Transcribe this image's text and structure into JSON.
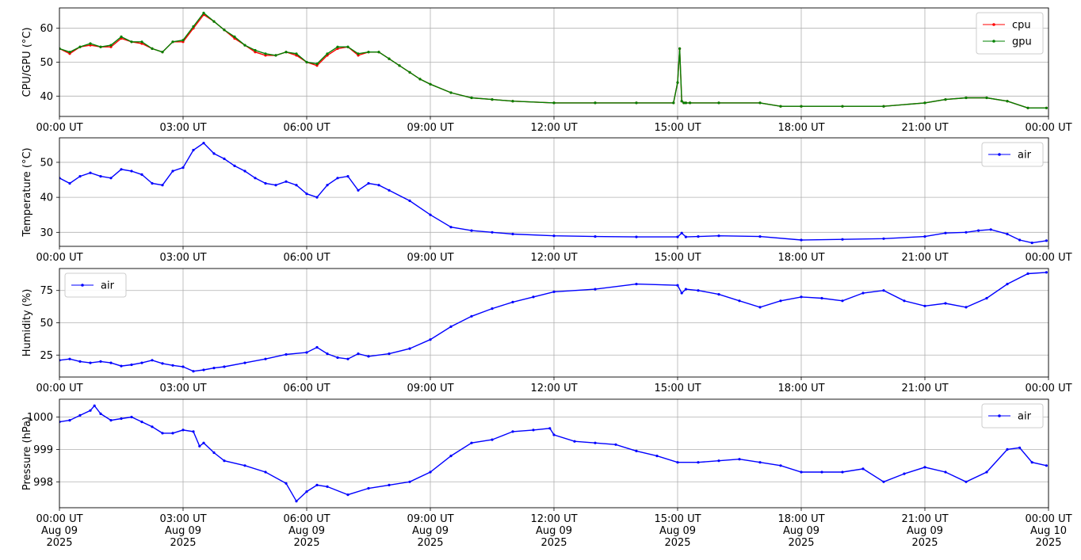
{
  "chart_data": [
    {
      "type": "line",
      "ylabel": "CPU/GPU (°C)",
      "ylim": [
        34,
        66
      ],
      "yticks": [
        40,
        50,
        60
      ],
      "legend": "top-right",
      "grid": true,
      "xtick_labels": [
        "00:00 UT",
        "03:00 UT",
        "06:00 UT",
        "09:00 UT",
        "12:00 UT",
        "15:00 UT",
        "18:00 UT",
        "21:00 UT",
        "00:00 UT"
      ],
      "series": [
        {
          "name": "cpu",
          "color": "#ff0000",
          "x": [
            0,
            0.25,
            0.5,
            0.75,
            1,
            1.25,
            1.5,
            1.75,
            2,
            2.25,
            2.5,
            2.75,
            3,
            3.25,
            3.5,
            3.75,
            4,
            4.25,
            4.5,
            4.75,
            5,
            5.25,
            5.5,
            5.75,
            6,
            6.25,
            6.5,
            6.75,
            7,
            7.25,
            7.5,
            7.75,
            8,
            8.25,
            8.5,
            8.75,
            9,
            9.5,
            10,
            10.5,
            11,
            12,
            13,
            14,
            14.9,
            15,
            15.05,
            15.1,
            15.15,
            15.2,
            15.3,
            16,
            17,
            17.5,
            18,
            19,
            20,
            21,
            21.5,
            22,
            22.5,
            23,
            23.5,
            23.95
          ],
          "y": [
            54,
            52.5,
            54.5,
            55,
            54.5,
            54.5,
            57,
            56,
            55.5,
            54,
            53,
            56,
            56,
            60,
            64,
            62,
            59.5,
            57,
            55,
            53,
            52,
            52,
            53,
            52,
            50,
            49,
            52,
            54,
            54.5,
            52,
            53,
            53,
            51,
            49,
            47,
            45,
            43.5,
            41,
            39.5,
            39,
            38.5,
            38,
            38,
            38,
            38,
            44,
            54,
            38.5,
            38,
            38,
            38,
            38,
            38,
            37,
            37,
            37,
            37,
            38,
            39,
            39.5,
            39.5,
            38.5,
            36.5,
            36.5
          ]
        },
        {
          "name": "gpu",
          "color": "#008000",
          "x": [
            0,
            0.25,
            0.5,
            0.75,
            1,
            1.25,
            1.5,
            1.75,
            2,
            2.25,
            2.5,
            2.75,
            3,
            3.25,
            3.5,
            3.75,
            4,
            4.25,
            4.5,
            4.75,
            5,
            5.25,
            5.5,
            5.75,
            6,
            6.25,
            6.5,
            6.75,
            7,
            7.25,
            7.5,
            7.75,
            8,
            8.25,
            8.5,
            8.75,
            9,
            9.5,
            10,
            10.5,
            11,
            12,
            13,
            14,
            14.9,
            15,
            15.05,
            15.1,
            15.15,
            15.2,
            15.3,
            16,
            17,
            17.5,
            18,
            19,
            20,
            21,
            21.5,
            22,
            22.5,
            23,
            23.5,
            23.95
          ],
          "y": [
            54,
            53,
            54.5,
            55.5,
            54.5,
            55,
            57.5,
            56,
            56,
            54,
            53,
            56,
            56.5,
            60.5,
            64.5,
            62,
            59.5,
            57.5,
            55,
            53.5,
            52.5,
            52,
            53,
            52.5,
            50,
            49.5,
            52.5,
            54.5,
            54.5,
            52.5,
            53,
            53,
            51,
            49,
            47,
            45,
            43.5,
            41,
            39.5,
            39,
            38.5,
            38,
            38,
            38,
            38,
            44,
            54,
            38.5,
            38,
            38,
            38,
            38,
            38,
            37,
            37,
            37,
            37,
            38,
            39,
            39.5,
            39.5,
            38.5,
            36.5,
            36.5
          ]
        }
      ]
    },
    {
      "type": "line",
      "ylabel": "Temperature (°C)",
      "ylim": [
        26,
        57
      ],
      "yticks": [
        30,
        40,
        50
      ],
      "legend": "top-right",
      "grid": true,
      "xtick_labels": [
        "00:00 UT",
        "03:00 UT",
        "06:00 UT",
        "09:00 UT",
        "12:00 UT",
        "15:00 UT",
        "18:00 UT",
        "21:00 UT",
        "00:00 UT"
      ],
      "series": [
        {
          "name": "air",
          "color": "#0000ff",
          "x": [
            0,
            0.25,
            0.5,
            0.75,
            1,
            1.25,
            1.5,
            1.75,
            2,
            2.25,
            2.5,
            2.75,
            3,
            3.25,
            3.5,
            3.75,
            4,
            4.25,
            4.5,
            4.75,
            5,
            5.25,
            5.5,
            5.75,
            6,
            6.25,
            6.5,
            6.75,
            7,
            7.25,
            7.5,
            7.75,
            8,
            8.5,
            9,
            9.5,
            10,
            10.5,
            11,
            12,
            13,
            14,
            15,
            15.1,
            15.2,
            15.5,
            16,
            17,
            18,
            19,
            20,
            21,
            21.5,
            22,
            22.3,
            22.6,
            23,
            23.3,
            23.6,
            23.95
          ],
          "y": [
            45.5,
            44,
            46,
            47,
            46,
            45.5,
            48,
            47.5,
            46.5,
            44,
            43.5,
            47.5,
            48.5,
            53.5,
            55.5,
            52.5,
            51,
            49,
            47.5,
            45.5,
            44,
            43.5,
            44.5,
            43.5,
            41,
            40,
            43.5,
            45.5,
            46,
            42,
            44,
            43.5,
            42,
            39,
            35,
            31.5,
            30.5,
            30,
            29.5,
            29,
            28.8,
            28.7,
            28.7,
            29.8,
            28.7,
            28.8,
            29,
            28.8,
            27.8,
            28,
            28.2,
            28.8,
            29.8,
            30,
            30.5,
            30.8,
            29.5,
            27.8,
            27,
            27.6
          ]
        }
      ]
    },
    {
      "type": "line",
      "ylabel": "Humidity (%)",
      "ylim": [
        8,
        92
      ],
      "yticks": [
        25,
        50,
        75
      ],
      "legend": "top-left",
      "grid": true,
      "xtick_labels": [
        "00:00 UT",
        "03:00 UT",
        "06:00 UT",
        "09:00 UT",
        "12:00 UT",
        "15:00 UT",
        "18:00 UT",
        "21:00 UT",
        "00:00 UT"
      ],
      "series": [
        {
          "name": "air",
          "color": "#0000ff",
          "x": [
            0,
            0.25,
            0.5,
            0.75,
            1,
            1.25,
            1.5,
            1.75,
            2,
            2.25,
            2.5,
            2.75,
            3,
            3.25,
            3.5,
            3.75,
            4,
            4.5,
            5,
            5.5,
            6,
            6.25,
            6.5,
            6.75,
            7,
            7.25,
            7.5,
            8,
            8.5,
            9,
            9.5,
            10,
            10.5,
            11,
            11.5,
            12,
            13,
            14,
            15,
            15.1,
            15.2,
            15.5,
            16,
            16.5,
            17,
            17.5,
            18,
            18.5,
            19,
            19.5,
            20,
            20.5,
            21,
            21.5,
            22,
            22.5,
            23,
            23.5,
            23.95
          ],
          "y": [
            21,
            22,
            20,
            19,
            20,
            19,
            16.5,
            17.5,
            19,
            21,
            18.5,
            17,
            16,
            12.5,
            13.5,
            15,
            16,
            19,
            22,
            25.5,
            27,
            31,
            26,
            23,
            22,
            26,
            24,
            26,
            30,
            37,
            47,
            55,
            61,
            66,
            70,
            74,
            76,
            80,
            79,
            73,
            76,
            75,
            72,
            67,
            62,
            67,
            70,
            69,
            67,
            73,
            75,
            67,
            63,
            65,
            62,
            69,
            80,
            88,
            89
          ]
        }
      ]
    },
    {
      "type": "line",
      "ylabel": "Pressure (hPa)",
      "ylim": [
        997.2,
        1000.55
      ],
      "yticks": [
        998,
        999,
        1000
      ],
      "legend": "top-right",
      "grid": true,
      "xtick_labels": [
        "00:00 UT\nAug 09\n2025",
        "03:00 UT\nAug 09\n2025",
        "06:00 UT\nAug 09\n2025",
        "09:00 UT\nAug 09\n2025",
        "12:00 UT\nAug 09\n2025",
        "15:00 UT\nAug 09\n2025",
        "18:00 UT\nAug 09\n2025",
        "21:00 UT\nAug 09\n2025",
        "00:00 UT\nAug 10\n2025"
      ],
      "series": [
        {
          "name": "air",
          "color": "#0000ff",
          "x": [
            0,
            0.25,
            0.5,
            0.75,
            0.85,
            1,
            1.25,
            1.5,
            1.75,
            2,
            2.25,
            2.5,
            2.75,
            3,
            3.25,
            3.4,
            3.5,
            3.75,
            4,
            4.5,
            5,
            5.5,
            5.75,
            6,
            6.25,
            6.5,
            7,
            7.5,
            8,
            8.5,
            9,
            9.5,
            10,
            10.5,
            11,
            11.5,
            11.9,
            12,
            12.5,
            13,
            13.5,
            14,
            14.5,
            15,
            15.5,
            16,
            16.5,
            17,
            17.5,
            18,
            18.5,
            19,
            19.5,
            20,
            20.5,
            21,
            21.5,
            22,
            22.5,
            23,
            23.3,
            23.6,
            23.95
          ],
          "y": [
            999.85,
            999.9,
            1000.05,
            1000.2,
            1000.35,
            1000.1,
            999.9,
            999.95,
            1000,
            999.85,
            999.7,
            999.5,
            999.5,
            999.6,
            999.55,
            999.1,
            999.2,
            998.9,
            998.65,
            998.5,
            998.3,
            997.95,
            997.4,
            997.7,
            997.9,
            997.85,
            997.6,
            997.8,
            997.9,
            998.0,
            998.3,
            998.8,
            999.2,
            999.3,
            999.55,
            999.6,
            999.65,
            999.45,
            999.25,
            999.2,
            999.15,
            998.95,
            998.8,
            998.6,
            998.6,
            998.65,
            998.7,
            998.6,
            998.5,
            998.3,
            998.3,
            998.3,
            998.4,
            998.0,
            998.25,
            998.45,
            998.3,
            998.0,
            998.3,
            999.0,
            999.05,
            998.6,
            998.5
          ]
        }
      ]
    }
  ]
}
